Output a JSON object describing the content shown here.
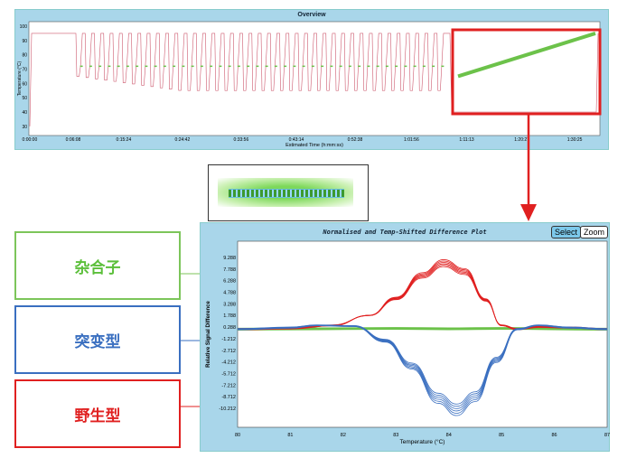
{
  "overview": {
    "title": "Overview",
    "ylabel": "Temperature (°C)",
    "xlabel": "Estimated Time (h:mm:ss)",
    "yticks": [
      "100",
      "90",
      "80",
      "70",
      "60",
      "50",
      "40",
      "30"
    ],
    "xticks": [
      "0:00:00",
      "0:06:08",
      "0:15:24",
      "0:24:42",
      "0:33:56",
      "0:43:14",
      "0:52:38",
      "1:01:56",
      "1:11:13",
      "1:20:27",
      "1:30:25"
    ],
    "cycles": 40,
    "colors": {
      "cycle": "#c0304a",
      "anneal": "#6cc24a",
      "highlight": "#e02020"
    }
  },
  "labels": [
    {
      "text": "杂合子",
      "color": "#5bbf3a"
    },
    {
      "text": "突变型",
      "color": "#3a6fc0"
    },
    {
      "text": "野生型",
      "color": "#e02020"
    }
  ],
  "diff_plot": {
    "title": "Normalised and Temp-Shifted Difference Plot",
    "select_label": "Select",
    "zoom_label": "Zoom"
  },
  "chart_data": [
    {
      "type": "line",
      "title": "Overview",
      "xlabel": "Estimated Time (h:mm:ss)",
      "ylabel": "Temperature (°C)",
      "ylim": [
        25,
        102
      ],
      "series": [
        {
          "x": [
            "0:00:00",
            "0:06:08",
            "1:07:00",
            "1:08:00",
            "1:30:25"
          ],
          "y": [
            95,
            95,
            95,
            40,
            95
          ]
        },
        {
          "x": [
            "1:08:30",
            "1:30:20"
          ],
          "y": [
            65,
            95
          ]
        }
      ]
    },
    {
      "type": "line",
      "title": "Normalised and Temp-Shifted Difference Plot",
      "xlabel": "Temperature (°C)",
      "ylabel": "Relative Signal Difference",
      "xlim": [
        80,
        87
      ],
      "ylim": [
        -13.5,
        10.5
      ],
      "grid": false,
      "yticks": [
        "9.288",
        "7.788",
        "6.288",
        "4.788",
        "3.288",
        "1.788",
        "0.288",
        "-1.212",
        "-2.712",
        "-4.212",
        "-5.712",
        "-7.212",
        "-8.712",
        "-10.212"
      ],
      "xticks": [
        "80",
        "81",
        "82",
        "83",
        "84",
        "85",
        "86",
        "87"
      ],
      "series": [
        {
          "color": "#e02020",
          "x": [
            80,
            81,
            81.8,
            82.5,
            83,
            83.5,
            83.9,
            84.3,
            84.7,
            85,
            85.3,
            85.7,
            86.3,
            87
          ],
          "y": [
            0,
            0.1,
            0.5,
            1.8,
            4,
            7,
            8.6,
            7.5,
            3.8,
            0.5,
            0,
            0.3,
            0.2,
            0
          ]
        },
        {
          "color": "#3a6fc0",
          "x": [
            80,
            81,
            81.5,
            82.2,
            82.8,
            83.3,
            83.8,
            84.15,
            84.5,
            84.9,
            85.3,
            85.7,
            86.3,
            87
          ],
          "y": [
            0,
            0.2,
            0.5,
            0.4,
            -1.5,
            -4.8,
            -9,
            -10.5,
            -8.8,
            -4,
            0,
            0.5,
            0.2,
            0
          ]
        },
        {
          "color": "#6cc24a",
          "x": [
            80,
            83,
            84,
            85,
            87
          ],
          "y": [
            0,
            0.1,
            0.05,
            0.1,
            0
          ]
        }
      ]
    }
  ]
}
